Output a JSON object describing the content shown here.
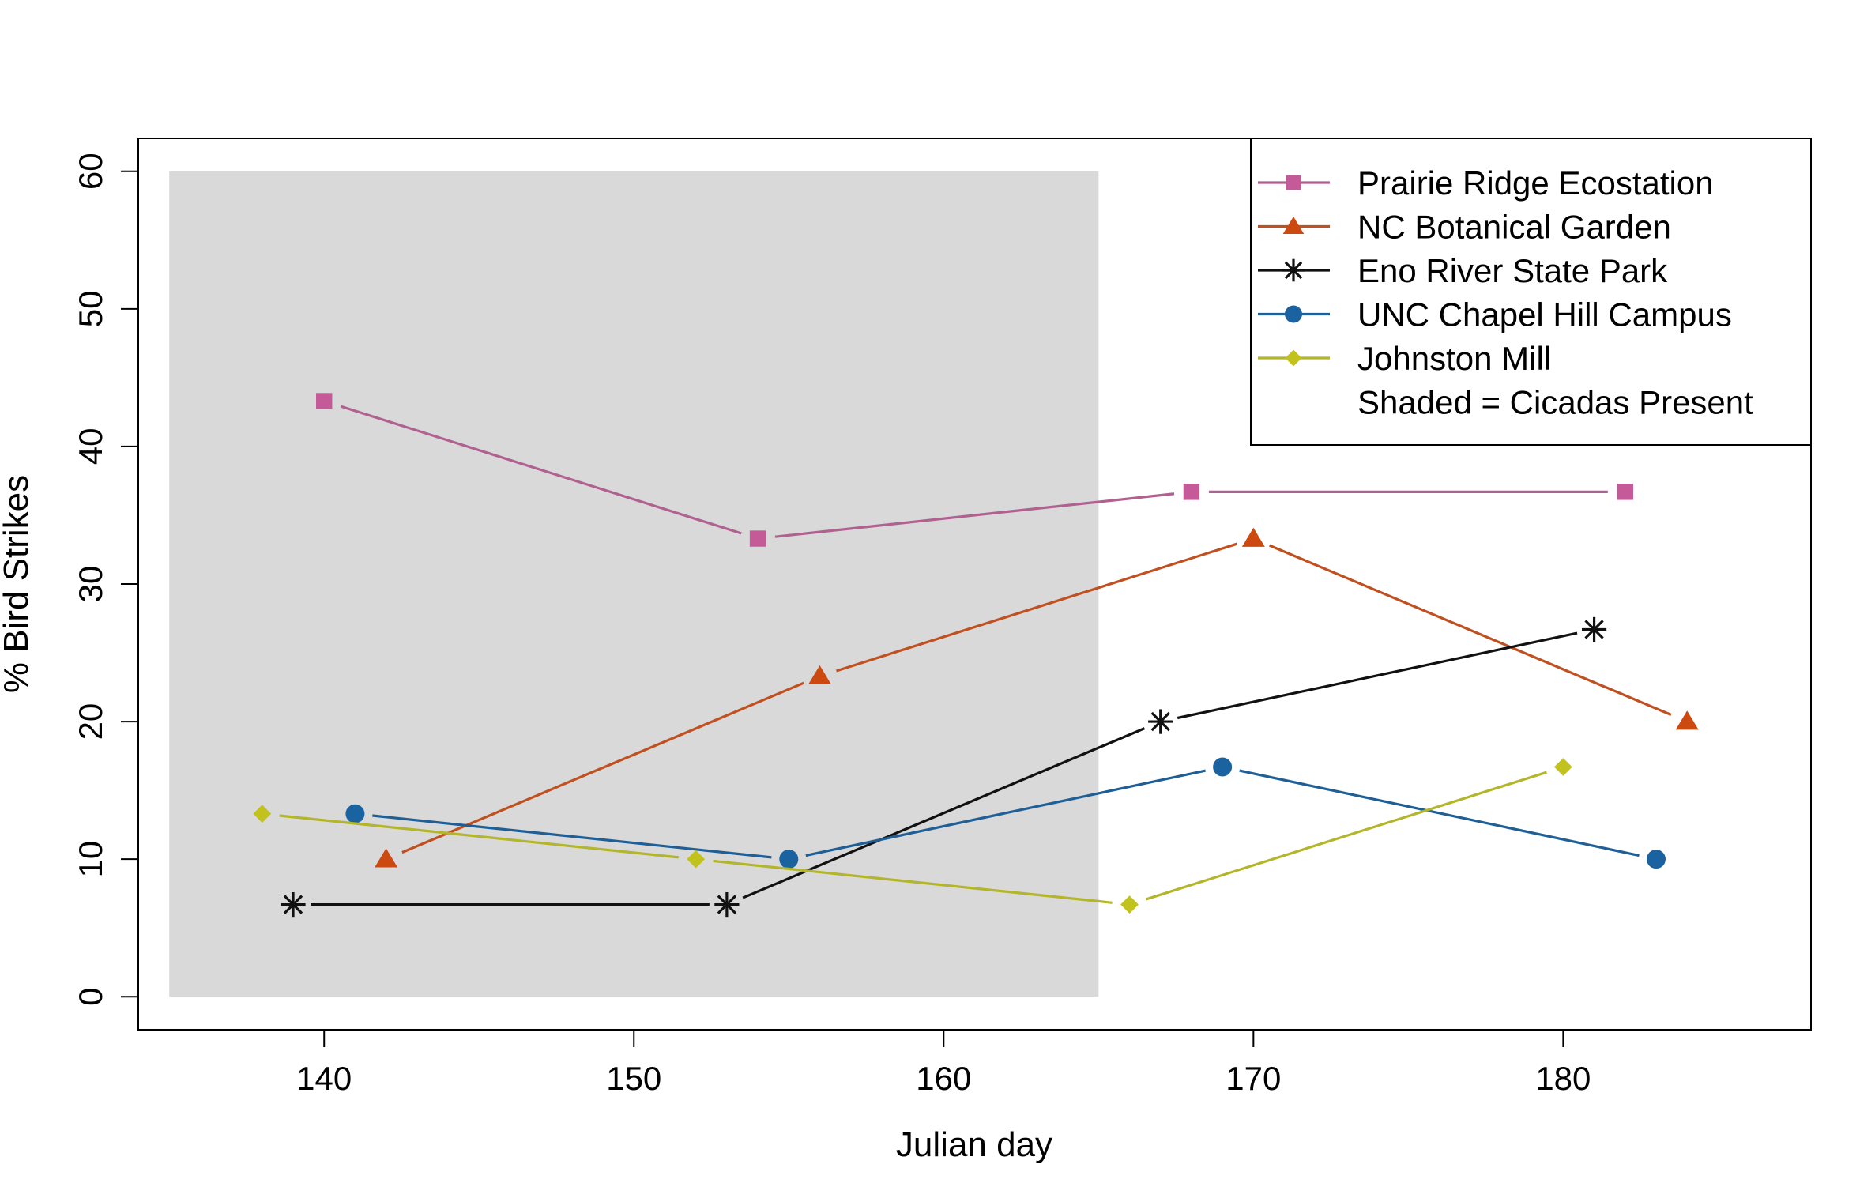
{
  "chart_data": {
    "type": "line",
    "title": "",
    "xlabel": "Julian day",
    "ylabel": "% Bird Strikes",
    "xlim": [
      134,
      188
    ],
    "ylim": [
      -2.4,
      62.4
    ],
    "xticks": [
      140,
      150,
      160,
      170,
      180
    ],
    "yticks": [
      0,
      10,
      20,
      30,
      40,
      50,
      60
    ],
    "grid": false,
    "legend_position": "top-right",
    "shaded_region": {
      "x": [
        135,
        165
      ],
      "y": [
        0,
        60
      ],
      "color": "#d9d9d9"
    },
    "legend_note": "Shaded = Cicadas Present",
    "series": [
      {
        "name": "Prairie Ridge Ecostation",
        "line_color": "#b0618f",
        "marker_color": "#c45a98",
        "marker": "square",
        "x": [
          140,
          154,
          168,
          182
        ],
        "y": [
          43.3,
          33.3,
          36.7,
          36.7
        ]
      },
      {
        "name": "NC Botanical Garden",
        "line_color": "#c0501f",
        "marker_color": "#cc4a10",
        "marker": "triangle",
        "x": [
          142,
          156,
          170,
          184
        ],
        "y": [
          10.0,
          23.3,
          33.3,
          20.0
        ]
      },
      {
        "name": "Eno River State Park",
        "line_color": "#111111",
        "marker_color": "#111111",
        "marker": "asterisk",
        "x": [
          139,
          153,
          167,
          181
        ],
        "y": [
          6.7,
          6.7,
          20.0,
          26.7
        ]
      },
      {
        "name": "UNC Chapel Hill Campus",
        "line_color": "#1f5f96",
        "marker_color": "#1a62a0",
        "marker": "circle",
        "x": [
          141,
          155,
          169,
          183
        ],
        "y": [
          13.3,
          10.0,
          16.7,
          10.0
        ]
      },
      {
        "name": "Johnston Mill",
        "line_color": "#b3b52a",
        "marker_color": "#c2c21e",
        "marker": "diamond",
        "x": [
          138,
          152,
          166,
          180
        ],
        "y": [
          13.3,
          10.0,
          6.7,
          16.7
        ]
      }
    ]
  }
}
